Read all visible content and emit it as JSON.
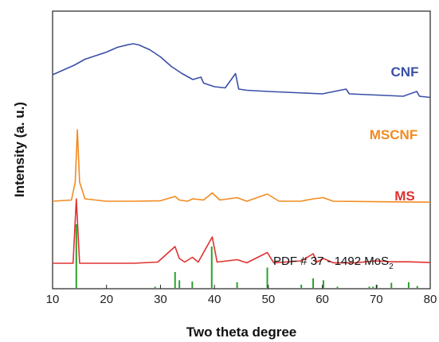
{
  "chart_data": {
    "type": "line",
    "xlabel": "Two theta degree",
    "ylabel": "Intensity (a. u.)",
    "xlim": [
      10,
      80
    ],
    "xticks": [
      "10",
      "20",
      "30",
      "40",
      "50",
      "60",
      "70",
      "80"
    ],
    "yticks_shown": false,
    "grid": false,
    "series": [
      {
        "name": "CNF",
        "color": "#3a4fa8",
        "x": [
          10,
          12,
          14,
          16,
          18,
          20,
          22,
          24,
          25,
          26,
          28,
          30,
          32,
          34,
          36,
          37.5,
          38,
          40,
          42,
          43.9,
          44.5,
          46,
          50,
          55,
          60,
          64.4,
          65,
          70,
          75,
          77.5,
          78,
          80
        ],
        "y": [
          0.87,
          0.89,
          0.91,
          0.935,
          0.95,
          0.965,
          0.985,
          0.996,
          1.0,
          0.995,
          0.975,
          0.945,
          0.905,
          0.875,
          0.85,
          0.86,
          0.835,
          0.82,
          0.815,
          0.875,
          0.81,
          0.805,
          0.8,
          0.795,
          0.79,
          0.81,
          0.79,
          0.785,
          0.78,
          0.8,
          0.78,
          0.775
        ]
      },
      {
        "name": "MSCNF",
        "color": "#f28a1f",
        "x": [
          10,
          13.5,
          14.2,
          14.6,
          15.0,
          16,
          20,
          25,
          30,
          32.7,
          33.5,
          35,
          36,
          38,
          39.6,
          41,
          44.2,
          46,
          49.8,
          52,
          56,
          58.3,
          60.2,
          62,
          70,
          80
        ],
        "y": [
          0.34,
          0.345,
          0.42,
          0.64,
          0.42,
          0.35,
          0.34,
          0.34,
          0.342,
          0.36,
          0.345,
          0.34,
          0.35,
          0.345,
          0.375,
          0.345,
          0.355,
          0.34,
          0.37,
          0.34,
          0.34,
          0.35,
          0.355,
          0.34,
          0.338,
          0.336
        ]
      },
      {
        "name": "MS",
        "color": "#e03131",
        "x": [
          10,
          13.8,
          14.4,
          15.0,
          16,
          25,
          29.5,
          32.7,
          33.5,
          34.5,
          35.9,
          37,
          39.6,
          40.5,
          44.2,
          46,
          49.8,
          51,
          56.1,
          58.3,
          59,
          60.2,
          62,
          66,
          70,
          73,
          76,
          80
        ],
        "y": [
          0.08,
          0.08,
          0.35,
          0.08,
          0.08,
          0.08,
          0.085,
          0.15,
          0.1,
          0.085,
          0.105,
          0.085,
          0.19,
          0.085,
          0.095,
          0.082,
          0.125,
          0.082,
          0.09,
          0.12,
          0.085,
          0.1,
          0.082,
          0.082,
          0.09,
          0.086,
          0.086,
          0.083
        ]
      }
    ],
    "reference": {
      "name": "PDF # 37 - 1492 MoS2",
      "label_main": "PDF # 37 - 1492  MoS",
      "label_sub": "2",
      "color": "#2ca02c",
      "type": "stick",
      "x": [
        14.4,
        29.0,
        32.7,
        33.5,
        35.9,
        39.5,
        44.2,
        49.8,
        56.1,
        58.3,
        60.2,
        62.8,
        68.7,
        69.4,
        70.1,
        72.8,
        76.0,
        77.6
      ],
      "intensity": [
        100,
        1,
        25,
        12,
        10,
        65,
        9,
        32,
        5,
        15,
        12,
        1,
        2,
        2,
        5,
        8,
        9,
        3
      ]
    }
  }
}
